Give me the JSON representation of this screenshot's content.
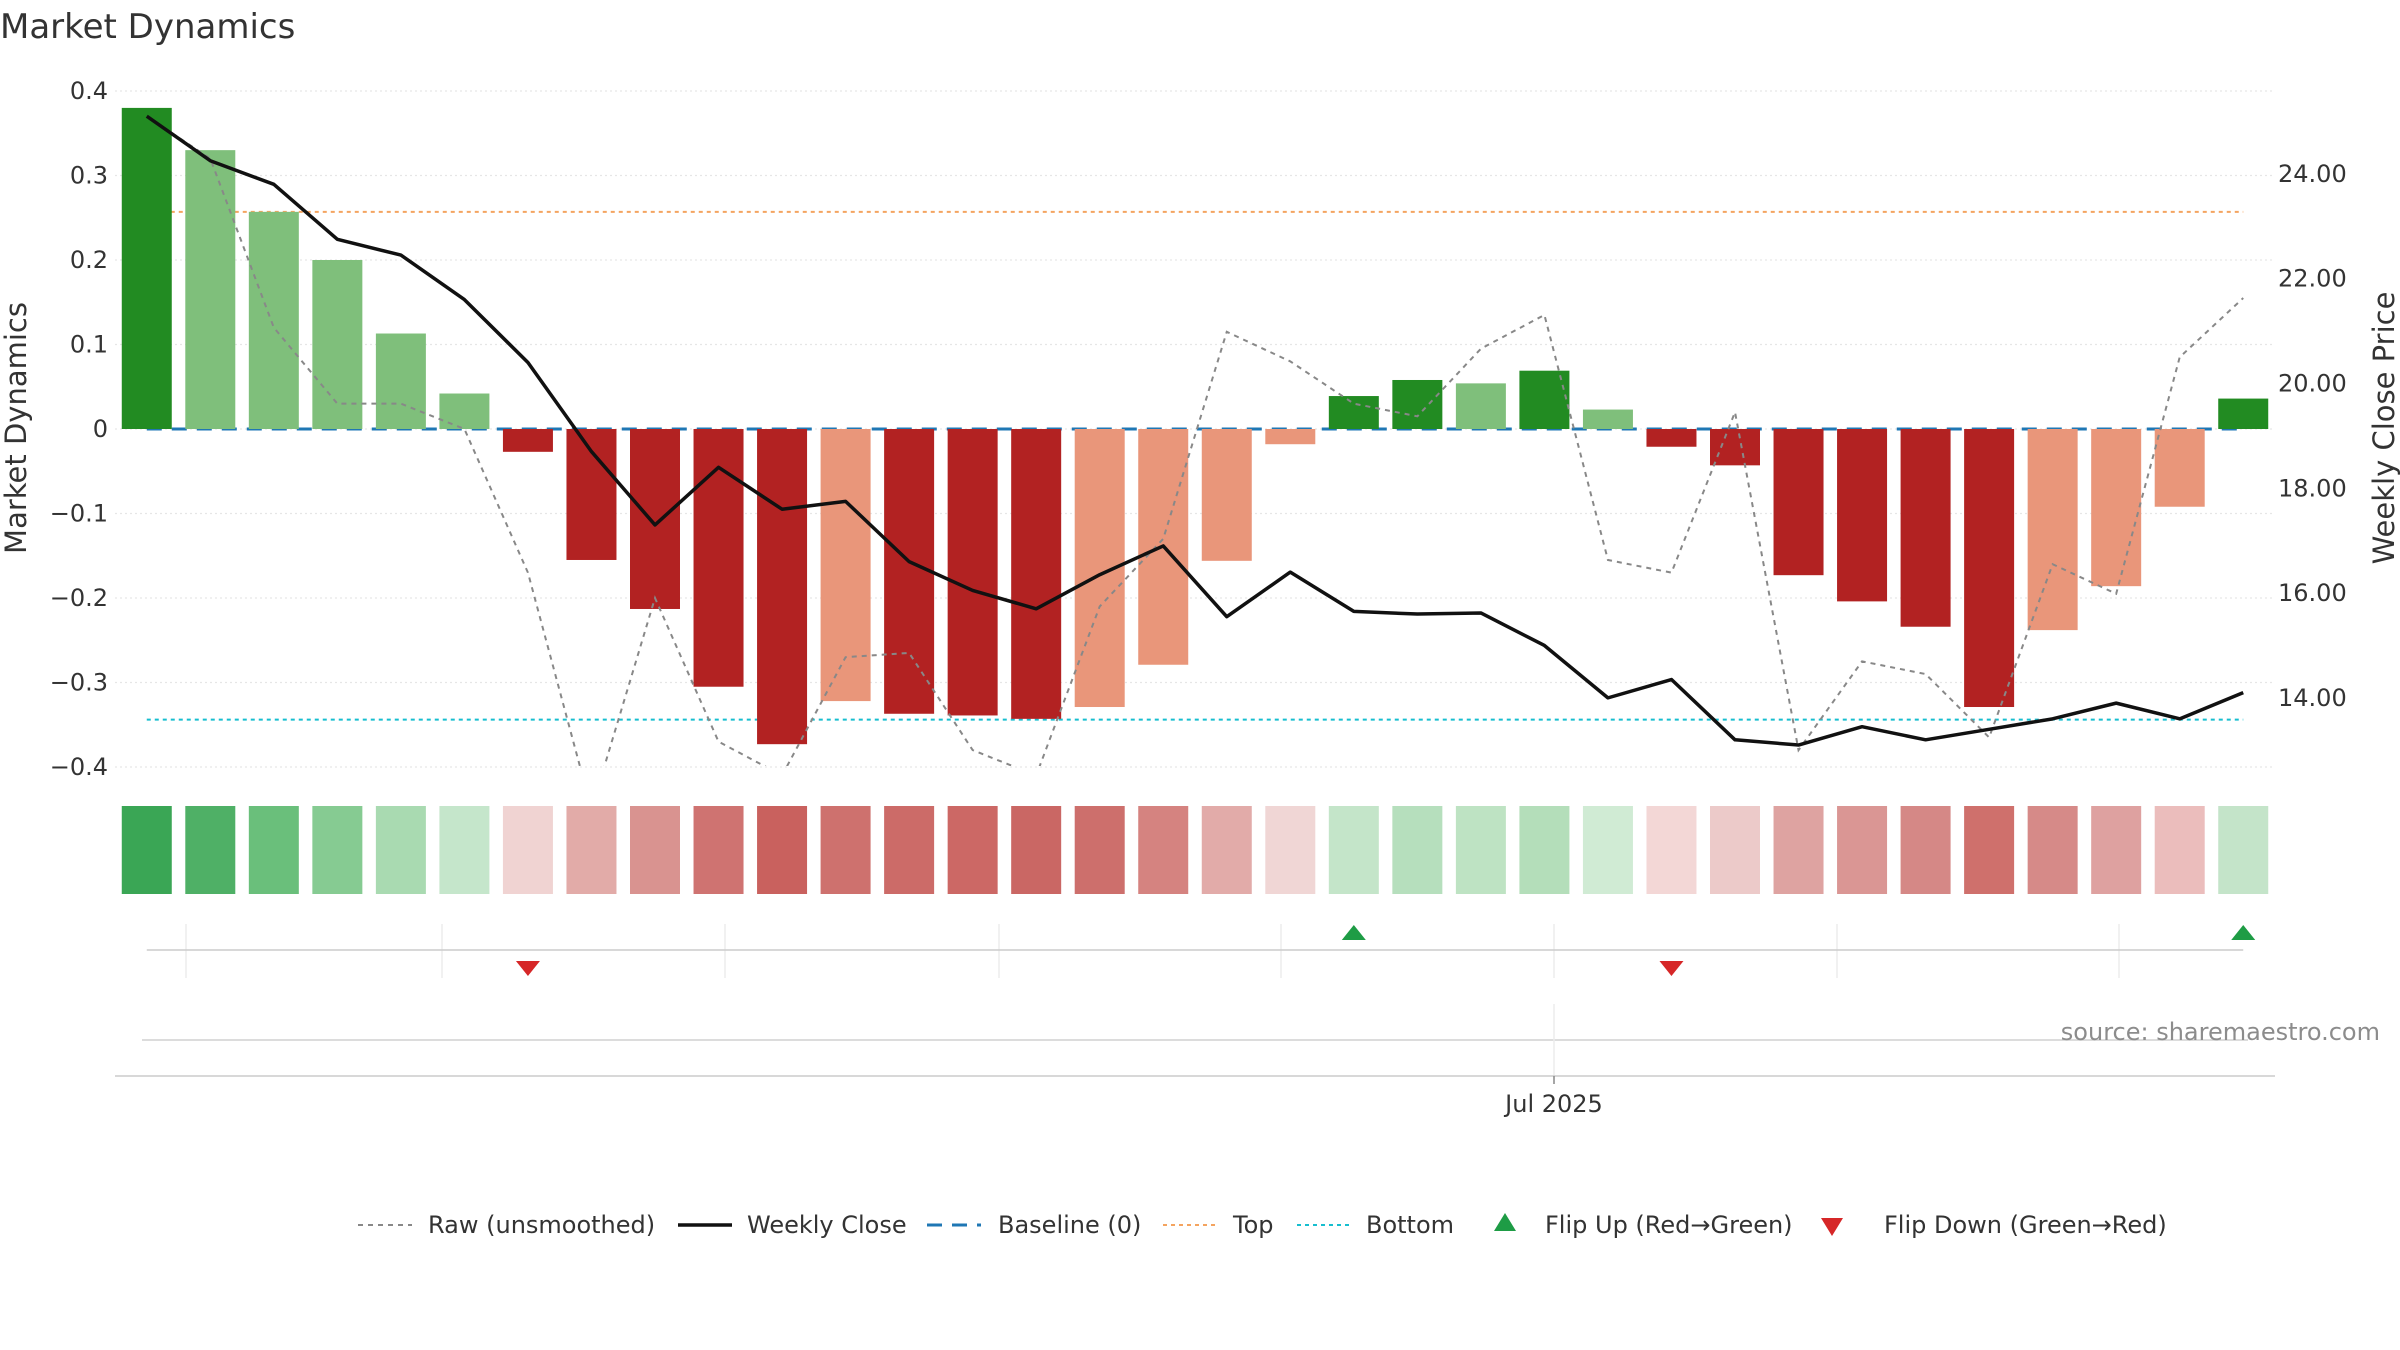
{
  "chart_data": {
    "type": "bar",
    "title": "Market Dynamics",
    "ylabel_left": "Market Dynamics",
    "ylabel_right": "Weekly Close Price",
    "ylim_left": [
      -0.4,
      0.4
    ],
    "ylim_right": [
      12.7,
      25.6
    ],
    "left_ticks": [
      "0.4",
      "0.3",
      "0.2",
      "0.1",
      "0",
      "−0.1",
      "−0.2",
      "−0.3",
      "−0.4"
    ],
    "right_ticks": [
      "24.00",
      "22.00",
      "20.00",
      "18.00",
      "16.00",
      "14.00"
    ],
    "x_tick_labels": [
      "Jul 2025"
    ],
    "source_text": "source: sharemaestro.com",
    "bar_values": [
      0.38,
      0.33,
      0.257,
      0.2,
      0.113,
      0.042,
      -0.027,
      -0.155,
      -0.213,
      -0.305,
      -0.373,
      -0.322,
      -0.337,
      -0.339,
      -0.343,
      -0.329,
      -0.279,
      -0.156,
      -0.018,
      0.039,
      0.058,
      0.054,
      0.069,
      0.023,
      -0.021,
      -0.043,
      -0.173,
      -0.204,
      -0.234,
      -0.329,
      -0.238,
      -0.186,
      -0.092,
      0.036
    ],
    "bar_colors": [
      "#228b22",
      "#7fbf7b",
      "#7fbf7b",
      "#7fbf7b",
      "#7fbf7b",
      "#7fbf7b",
      "#b22222",
      "#b22222",
      "#b22222",
      "#b22222",
      "#b22222",
      "#e9967a",
      "#b22222",
      "#b22222",
      "#b22222",
      "#e9967a",
      "#e9967a",
      "#e9967a",
      "#e9967a",
      "#228b22",
      "#228b22",
      "#7fbf7b",
      "#228b22",
      "#7fbf7b",
      "#b22222",
      "#b22222",
      "#b22222",
      "#b22222",
      "#b22222",
      "#b22222",
      "#e9967a",
      "#e9967a",
      "#e9967a",
      "#228b22"
    ],
    "strip_colors": [
      "#3aa655",
      "#4fb066",
      "#6abf7b",
      "#86cb92",
      "#a9dab1",
      "#c5e6cb",
      "#f0d3d2",
      "#e2aba8",
      "#d99390",
      "#cf7371",
      "#c9615e",
      "#ce716e",
      "#cc6b68",
      "#cc6865",
      "#ca6764",
      "#cd6f6c",
      "#d58380",
      "#e2aba9",
      "#f0d6d5",
      "#c4e5c9",
      "#b6dfbd",
      "#bee3c3",
      "#b4deba",
      "#d0ebd4",
      "#f3d7d6",
      "#eccac9",
      "#dea3a1",
      "#da9694",
      "#d58886",
      "#cf706c",
      "#d68a88",
      "#dea1a0",
      "#ebbdbc",
      "#c4e4c9"
    ],
    "raw_values": [
      0.37,
      0.32,
      0.12,
      0.03,
      0.03,
      0.0,
      -0.17,
      -0.45,
      -0.2,
      -0.37,
      -0.41,
      -0.27,
      -0.265,
      -0.38,
      -0.41,
      -0.21,
      -0.13,
      0.115,
      0.08,
      0.03,
      0.015,
      0.095,
      0.135,
      -0.155,
      -0.17,
      0.02,
      -0.38,
      -0.275,
      -0.29,
      -0.365,
      -0.16,
      -0.195,
      0.085,
      0.155
    ],
    "close_prices": [
      25.1,
      24.25,
      23.8,
      22.75,
      22.45,
      21.6,
      20.4,
      18.7,
      17.3,
      18.4,
      17.6,
      17.75,
      16.6,
      16.05,
      15.7,
      16.35,
      16.9,
      15.55,
      16.4,
      15.65,
      15.6,
      15.62,
      15.0,
      14.0,
      14.35,
      13.2,
      13.1,
      13.45,
      13.2,
      13.4,
      13.6,
      13.9,
      13.6,
      14.1
    ],
    "baseline": 0,
    "top": 0.257,
    "bottom": -0.344,
    "flip_up_indices": [
      19,
      33
    ],
    "flip_down_indices": [
      6,
      24
    ],
    "legend": [
      "Raw (unsmoothed)",
      "Weekly Close",
      "Baseline (0)",
      "Top",
      "Bottom",
      "Flip Up (Red→Green)",
      "Flip Down (Green→Red)"
    ],
    "colors": {
      "raw": "#888888",
      "close": "#111111",
      "baseline": "#1f77b4",
      "top": "#f4a460",
      "bottom": "#17becf",
      "flip_up": "#1e9c45",
      "flip_down": "#d62728"
    }
  }
}
